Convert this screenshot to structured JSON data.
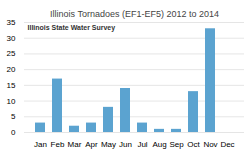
{
  "chart_data": {
    "type": "bar",
    "title": "Illinois Tornadoes (EF1-EF5) 2012 to 2014",
    "annotation": "Illinois State Water Survey",
    "categories": [
      "Jan",
      "Feb",
      "Mar",
      "Apr",
      "May",
      "Jun",
      "Jul",
      "Aug",
      "Sep",
      "Oct",
      "Nov",
      "Dec"
    ],
    "values": [
      3,
      17,
      2,
      3,
      8,
      14,
      3,
      1,
      1,
      13,
      33,
      0
    ],
    "color": "#5BA3D0",
    "ylim": [
      0,
      35
    ],
    "yticks": [
      0,
      5,
      10,
      15,
      20,
      25,
      30,
      35
    ],
    "grid": true
  }
}
